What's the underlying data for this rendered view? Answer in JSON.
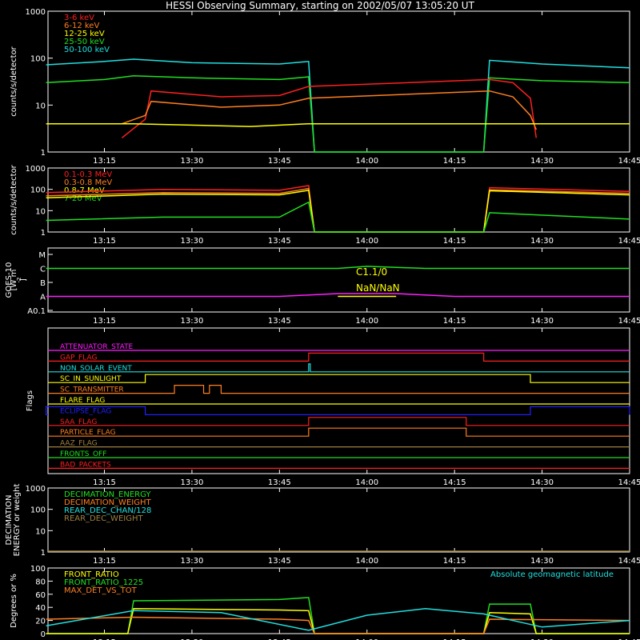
{
  "title": "HESSI Observing Summary, starting on 2002/05/07 13:05:20 UT",
  "chart_data": [
    {
      "type": "line",
      "panel": "light-curves-low",
      "ylabel": "counts/s/detector",
      "yscale": "log",
      "ylim": [
        1,
        1000
      ],
      "yticks": [
        "1",
        "10",
        "100",
        "1000"
      ],
      "xticks": [
        "13:15",
        "13:30",
        "13:45",
        "14:00",
        "14:15",
        "14:30",
        "14:45"
      ],
      "legend": "top-left",
      "series": [
        {
          "name": "3-6 keV",
          "color": "#ff2020"
        },
        {
          "name": "6-12 keV",
          "color": "#ff7f20"
        },
        {
          "name": "12-25 keV",
          "color": "#ffff00"
        },
        {
          "name": "25-50 keV",
          "color": "#20e020"
        },
        {
          "name": "50-100 keV",
          "color": "#20e0e0"
        }
      ],
      "data_points": [
        {
          "series": "50-100 keV",
          "x": [
            "13:05",
            "13:15",
            "13:20",
            "13:30",
            "13:45",
            "13:50",
            "13:51",
            "14:20",
            "14:21",
            "14:30",
            "14:45"
          ],
          "y": [
            72,
            85,
            95,
            80,
            75,
            85,
            1,
            1,
            90,
            75,
            62
          ]
        },
        {
          "series": "25-50 keV",
          "x": [
            "13:05",
            "13:15",
            "13:20",
            "13:30",
            "13:45",
            "13:50",
            "13:51",
            "14:20",
            "14:21",
            "14:30",
            "14:45"
          ],
          "y": [
            30,
            35,
            42,
            38,
            35,
            40,
            1,
            1,
            38,
            33,
            30
          ]
        },
        {
          "series": "3-6 keV",
          "x": [
            "13:18",
            "13:22",
            "13:23",
            "13:35",
            "13:45",
            "13:50",
            "14:21",
            "14:25",
            "14:28",
            "14:29"
          ],
          "y": [
            2,
            5,
            20,
            15,
            16,
            25,
            35,
            30,
            14,
            2
          ]
        },
        {
          "series": "6-12 keV",
          "x": [
            "13:18",
            "13:22",
            "13:23",
            "13:35",
            "13:45",
            "13:50",
            "14:21",
            "14:25",
            "14:28",
            "14:29"
          ],
          "y": [
            4,
            6,
            12,
            9,
            10,
            14,
            20,
            15,
            6,
            3
          ]
        },
        {
          "series": "12-25 keV",
          "x": [
            "13:05",
            "13:20",
            "13:40",
            "13:50",
            "14:21",
            "14:35",
            "14:45"
          ],
          "y": [
            4,
            4,
            3.5,
            4,
            4,
            4,
            4
          ]
        }
      ]
    },
    {
      "type": "line",
      "panel": "light-curves-high",
      "ylabel": "counts/s/detector",
      "yscale": "log",
      "ylim": [
        1,
        1000
      ],
      "yticks": [
        "1",
        "10",
        "100",
        "1000"
      ],
      "xticks": [
        "13:15",
        "13:30",
        "13:45",
        "14:00",
        "14:15",
        "14:30",
        "14:45"
      ],
      "legend": "top-left",
      "series": [
        {
          "name": "0.1-0.3 MeV",
          "color": "#ff2020"
        },
        {
          "name": "0.3-0.8 MeV",
          "color": "#ff7f20"
        },
        {
          "name": "0.8-7 MeV",
          "color": "#ffff00"
        },
        {
          "name": "7-20 MeV",
          "color": "#20e020"
        }
      ],
      "data_points": [
        {
          "series": "0.1-0.3 MeV",
          "x": [
            "13:05",
            "13:25",
            "13:45",
            "13:50",
            "13:51",
            "14:20",
            "14:21",
            "14:45"
          ],
          "y": [
            70,
            100,
            90,
            150,
            1,
            1,
            120,
            80
          ]
        },
        {
          "series": "0.3-0.8 MeV",
          "x": [
            "13:05",
            "13:25",
            "13:45",
            "13:50",
            "13:51",
            "14:20",
            "14:21",
            "14:45"
          ],
          "y": [
            50,
            70,
            65,
            110,
            1,
            1,
            95,
            65
          ]
        },
        {
          "series": "0.8-7 MeV",
          "x": [
            "13:05",
            "13:25",
            "13:45",
            "13:50",
            "13:51",
            "14:20",
            "14:21",
            "14:45"
          ],
          "y": [
            40,
            60,
            55,
            90,
            1,
            1,
            85,
            55
          ]
        },
        {
          "series": "7-20 MeV",
          "x": [
            "13:05",
            "13:25",
            "13:45",
            "13:50",
            "13:51",
            "14:20",
            "14:21",
            "14:45"
          ],
          "y": [
            3.5,
            5,
            5,
            25,
            1,
            1,
            8,
            4
          ]
        }
      ]
    },
    {
      "type": "line",
      "panel": "goes",
      "ylabel": "GOES-10 [W m^-2]",
      "ylabels": [
        "GOES-10",
        "[W m",
        "-2",
        "]"
      ],
      "yticks": [
        "A0.1",
        "A",
        "B",
        "C",
        "M"
      ],
      "xticks": [
        "13:15",
        "13:30",
        "13:45",
        "14:00",
        "14:15",
        "14:30",
        "14:45"
      ],
      "annotations": [
        "C1.1/0",
        "NaN/NaN"
      ],
      "data_points": [
        {
          "name": "long",
          "color": "#20e020",
          "x": [
            "13:05",
            "13:50",
            "13:55",
            "14:00",
            "14:10",
            "14:20",
            "14:45"
          ],
          "y": [
            "C",
            "C",
            "C",
            "C+",
            "C",
            "C",
            "C"
          ]
        },
        {
          "name": "short",
          "color": "#ff20ff",
          "x": [
            "13:05",
            "13:45",
            "13:55",
            "14:05",
            "14:15",
            "14:45"
          ],
          "y": [
            "A",
            "A",
            "A+",
            "A+",
            "A",
            "A"
          ]
        },
        {
          "name": "marker",
          "color": "#ffff00",
          "x": [
            "13:55",
            "14:05"
          ],
          "y": [
            "A",
            "A"
          ]
        }
      ]
    },
    {
      "type": "table",
      "panel": "flags",
      "ylabel": "Flags",
      "xticks": [
        "13:15",
        "13:30",
        "13:45",
        "14:00",
        "14:15",
        "14:30",
        "14:45"
      ],
      "flags": [
        {
          "name": "ATTENUATOR_STATE",
          "color": "#ff20ff",
          "on": []
        },
        {
          "name": "GAP_FLAG",
          "color": "#ff2020",
          "on": [
            [
              "13:50",
              "14:20"
            ]
          ]
        },
        {
          "name": "NON_SOLAR_EVENT",
          "color": "#20e0e0",
          "on": [
            [
              "13:50",
              "13:50"
            ]
          ]
        },
        {
          "name": "SC_IN_SUNLIGHT",
          "color": "#ffff00",
          "on": [
            [
              "13:22",
              "14:28"
            ]
          ]
        },
        {
          "name": "SC_TRANSMITTER",
          "color": "#ff7f20",
          "on": [
            [
              "13:27",
              "13:32"
            ],
            [
              "13:33",
              "13:35"
            ]
          ]
        },
        {
          "name": "FLARE_FLAG",
          "color": "#ffff00",
          "on": []
        },
        {
          "name": "ECLIPSE_FLAG",
          "color": "#2020ff",
          "on": [
            [
              "13:05",
              "13:22"
            ],
            [
              "14:28",
              "14:45"
            ]
          ]
        },
        {
          "name": "SAA_FLAG",
          "color": "#ff2020",
          "on": [
            [
              "13:50",
              "14:17"
            ]
          ]
        },
        {
          "name": "PARTICLE_FLAG",
          "color": "#ff7f20",
          "on": [
            [
              "13:50",
              "14:17"
            ]
          ]
        },
        {
          "name": "AAZ_FLAG",
          "color": "#a08040",
          "on": []
        },
        {
          "name": "FRONTS_OFF",
          "color": "#20e020",
          "on": []
        },
        {
          "name": "BAD_PACKETS",
          "color": "#ff2020",
          "on": []
        }
      ]
    },
    {
      "type": "line",
      "panel": "decimation",
      "ylabels": [
        "DECIMATION",
        "ENERGY or weight"
      ],
      "yscale": "log",
      "ylim": [
        1,
        1000
      ],
      "yticks": [
        "1",
        "10",
        "100",
        "1000"
      ],
      "xticks": [
        "13:15",
        "13:30",
        "13:45",
        "14:00",
        "14:15",
        "14:30",
        "14:45"
      ],
      "legend": "top-left",
      "series": [
        {
          "name": "DECIMATION_ENERGY",
          "color": "#20e020"
        },
        {
          "name": "DECIMATION_WEIGHT",
          "color": "#ff7f20"
        },
        {
          "name": "REAR_DEC_CHAN/128",
          "color": "#20e0e0"
        },
        {
          "name": "REAR_DEC_WEIGHT",
          "color": "#a08040"
        }
      ]
    },
    {
      "type": "line",
      "panel": "ratios",
      "ylabel": "Degrees or %",
      "ylim": [
        0,
        100
      ],
      "yticks": [
        "0",
        "20",
        "40",
        "60",
        "80",
        "100"
      ],
      "xticks": [
        "13:15",
        "13:30",
        "13:45",
        "14:00",
        "14:15",
        "14:30",
        "14:45"
      ],
      "legend": "top-left",
      "note": "Absolute geomagnetic latitude",
      "series": [
        {
          "name": "FRONT_RATIO",
          "color": "#ffff00"
        },
        {
          "name": "FRONT_RATIO_1225",
          "color": "#20e020"
        },
        {
          "name": "MAX_DET_VS_TOT",
          "color": "#ff7f20"
        },
        {
          "name": "Absolute geomagnetic latitude",
          "color": "#20e0e0"
        }
      ],
      "data_points": [
        {
          "series": "FRONT_RATIO_1225",
          "x": [
            "13:05",
            "13:19",
            "13:20",
            "13:45",
            "13:50",
            "13:51",
            "14:20",
            "14:21",
            "14:28",
            "14:29",
            "14:45"
          ],
          "y": [
            0,
            0,
            50,
            52,
            55,
            0,
            0,
            45,
            45,
            0,
            0
          ]
        },
        {
          "series": "FRONT_RATIO",
          "x": [
            "13:05",
            "13:19",
            "13:20",
            "13:45",
            "13:50",
            "13:51",
            "14:20",
            "14:21",
            "14:28",
            "14:29",
            "14:45"
          ],
          "y": [
            0,
            0,
            38,
            36,
            35,
            0,
            0,
            32,
            30,
            0,
            0
          ]
        },
        {
          "series": "MAX_DET_VS_TOT",
          "x": [
            "13:05",
            "13:20",
            "13:45",
            "13:50",
            "13:51",
            "14:20",
            "14:21",
            "14:45"
          ],
          "y": [
            22,
            25,
            22,
            20,
            0,
            0,
            22,
            20
          ]
        },
        {
          "series": "Absolute geomagnetic latitude",
          "x": [
            "13:05",
            "13:20",
            "13:35",
            "13:50",
            "14:00",
            "14:10",
            "14:20",
            "14:30",
            "14:45"
          ],
          "y": [
            12,
            35,
            32,
            5,
            28,
            38,
            30,
            10,
            20
          ]
        }
      ]
    }
  ]
}
